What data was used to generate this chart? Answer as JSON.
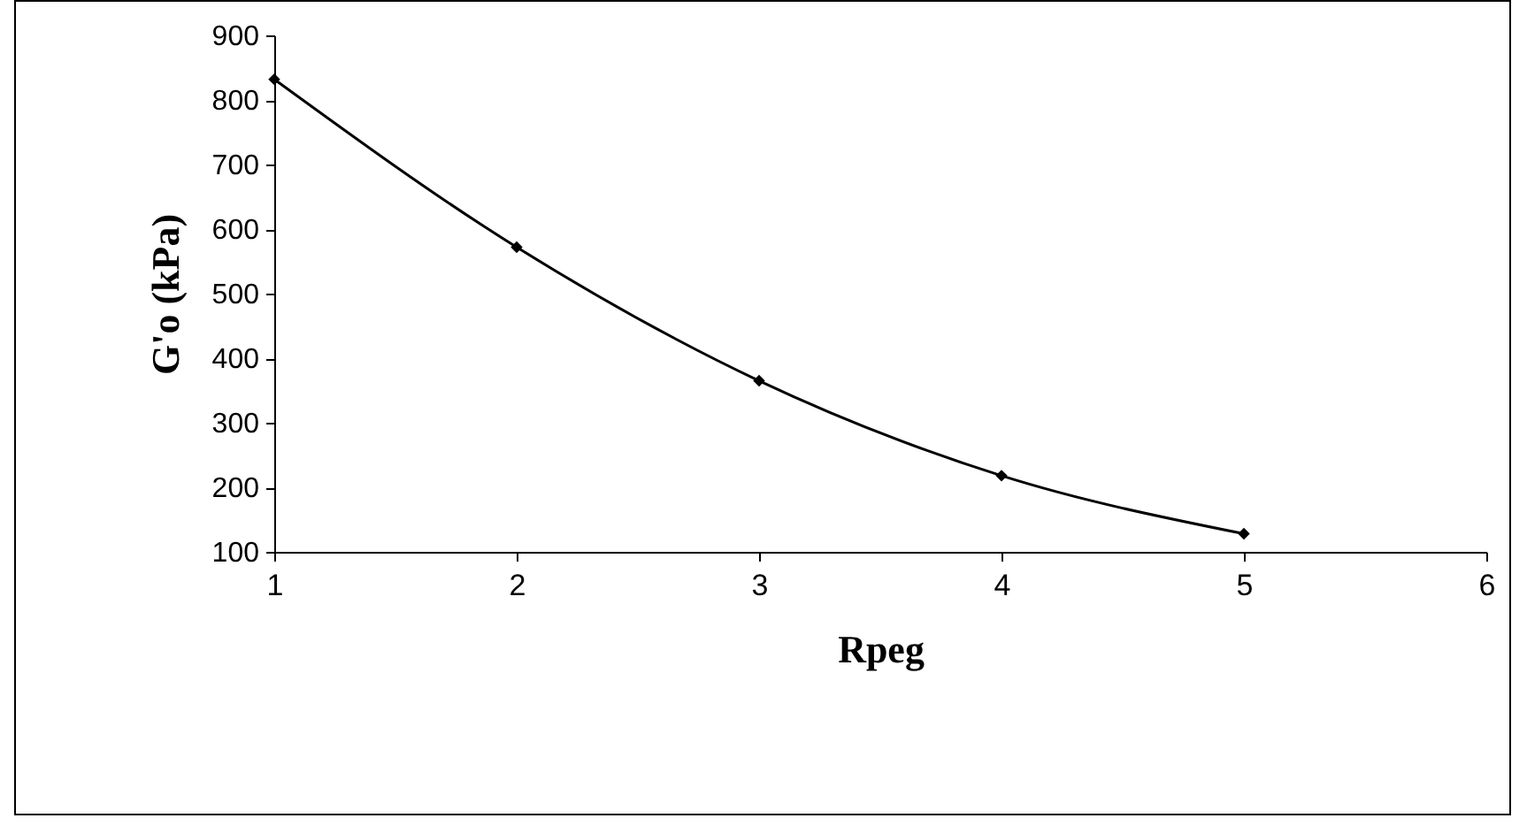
{
  "chart_data": {
    "type": "line",
    "xlabel": "Rpeg",
    "ylabel": "G'o (kPa)",
    "x": [
      1,
      2,
      3,
      4,
      5
    ],
    "series": [
      {
        "color": "#000000",
        "values": [
          832,
          572,
          365,
          218,
          128
        ]
      }
    ],
    "xlim": [
      1,
      6
    ],
    "xticks": [
      1,
      2,
      3,
      4,
      5,
      6
    ],
    "ylim": [
      100,
      900
    ],
    "yticks": [
      100,
      200,
      300,
      400,
      500,
      600,
      700,
      800,
      900
    ],
    "grid": false,
    "marker": "diamond",
    "line_style": "solid"
  }
}
